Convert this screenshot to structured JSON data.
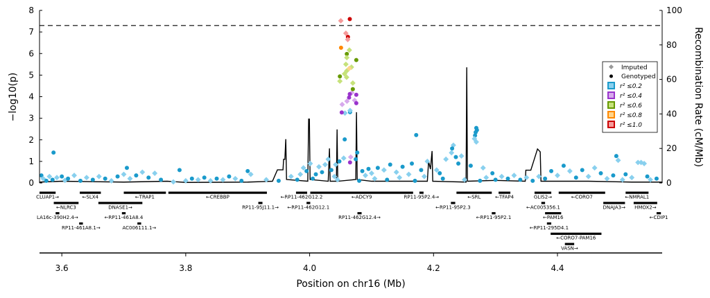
{
  "chart_data": {
    "type": "scatter",
    "title": "",
    "xlabel": "Position on chr16 (Mb)",
    "ylabel": "−log10(p)",
    "ylabel_right": "Recombination Rate (cM/Mb)",
    "xlim": [
      3.564,
      4.569
    ],
    "ylim": [
      0,
      8
    ],
    "ylim_right": [
      0,
      100
    ],
    "xticks": [
      3.6,
      3.8,
      4.0,
      4.2,
      4.4
    ],
    "xtick_labels": [
      "3.6",
      "3.8",
      "4.0",
      "4.2",
      "4.4"
    ],
    "yticks": [
      0,
      1,
      2,
      3,
      4,
      5,
      6,
      7,
      8
    ],
    "yticks_right": [
      0,
      20,
      40,
      60,
      80,
      100
    ],
    "significance_line": 7.3,
    "legend": {
      "placement": "right",
      "imputed_label": "Imputed",
      "genotyped_label": "Genotyped",
      "bins": [
        {
          "label": "r² ≤0.2",
          "dark": "#1a9acb",
          "light": "#89d0ee"
        },
        {
          "label": "r² ≤0.4",
          "dark": "#9933cc",
          "light": "#d7a9ec"
        },
        {
          "label": "r² ≤0.6",
          "dark": "#669900",
          "light": "#c6e27a"
        },
        {
          "label": "r² ≤0.8",
          "dark": "#ff8800",
          "light": "#ffd48c"
        },
        {
          "label": "r² ≤1.0",
          "dark": "#cc0000",
          "light": "#f59b9b"
        }
      ]
    },
    "points_format": "[position_Mb, -log10p, r2_bin_index, genotyped(1)/imputed(0)]",
    "points": [
      [
        4.0503,
        7.52,
        4,
        0
      ],
      [
        4.0648,
        7.6,
        4,
        1
      ],
      [
        4.0585,
        6.94,
        4,
        0
      ],
      [
        4.0618,
        6.77,
        4,
        1
      ],
      [
        4.0615,
        6.65,
        4,
        0
      ],
      [
        4.0507,
        6.27,
        3,
        1
      ],
      [
        4.0641,
        6.16,
        2,
        0
      ],
      [
        4.06,
        5.98,
        2,
        1
      ],
      [
        4.06,
        5.81,
        2,
        0
      ],
      [
        4.0753,
        5.7,
        2,
        1
      ],
      [
        4.0585,
        5.5,
        2,
        0
      ],
      [
        4.0675,
        5.37,
        2,
        0
      ],
      [
        4.064,
        5.31,
        3,
        0
      ],
      [
        4.06,
        5.2,
        2,
        0
      ],
      [
        4.0563,
        5.06,
        2,
        0
      ],
      [
        4.0488,
        4.94,
        2,
        1
      ],
      [
        4.0597,
        4.9,
        2,
        0
      ],
      [
        4.0488,
        4.72,
        2,
        0
      ],
      [
        4.0697,
        4.63,
        2,
        0
      ],
      [
        4.0697,
        4.35,
        2,
        1
      ],
      [
        4.068,
        4.18,
        1,
        0
      ],
      [
        4.0648,
        4.12,
        1,
        1
      ],
      [
        4.0753,
        4.09,
        1,
        1
      ],
      [
        4.0637,
        3.96,
        1,
        1
      ],
      [
        4.0603,
        3.79,
        1,
        0
      ],
      [
        4.0726,
        3.83,
        1,
        0
      ],
      [
        4.0753,
        3.7,
        1,
        1
      ],
      [
        4.0525,
        3.64,
        1,
        0
      ],
      [
        4.0518,
        3.27,
        1,
        1
      ],
      [
        4.057,
        3.24,
        0,
        0
      ],
      [
        4.0652,
        3.28,
        0,
        1
      ],
      [
        4.0652,
        3.36,
        0,
        0
      ],
      [
        4.0566,
        2.02,
        0,
        1
      ],
      [
        4.0652,
        0.95,
        1,
        1
      ],
      [
        4.0663,
        1.2,
        1,
        0
      ],
      [
        4.0768,
        1.41,
        0,
        1
      ],
      [
        4.0745,
        1.1,
        0,
        1
      ],
      [
        4.055,
        1.15,
        0,
        0
      ],
      [
        4.048,
        1.0,
        0,
        1
      ],
      [
        4.042,
        0.85,
        0,
        0
      ],
      [
        3.5866,
        1.41,
        0,
        1
      ],
      [
        4.172,
        2.22,
        0,
        1
      ],
      [
        4.269,
        2.55,
        0,
        1
      ],
      [
        4.27,
        2.45,
        0,
        1
      ],
      [
        4.268,
        2.35,
        0,
        1
      ],
      [
        4.267,
        2.2,
        0,
        1
      ],
      [
        4.266,
        2.05,
        0,
        0
      ],
      [
        4.269,
        1.9,
        0,
        0
      ],
      [
        4.232,
        1.75,
        0,
        0
      ],
      [
        4.23,
        1.6,
        0,
        1
      ],
      [
        4.229,
        1.4,
        0,
        0
      ],
      [
        4.236,
        1.2,
        0,
        1
      ],
      [
        4.24,
        0.9,
        0,
        1
      ],
      [
        4.245,
        1.25,
        0,
        0
      ],
      [
        4.22,
        1.1,
        0,
        0
      ],
      [
        4.26,
        0.8,
        0,
        1
      ],
      [
        4.28,
        0.7,
        0,
        0
      ],
      [
        4.295,
        0.45,
        0,
        1
      ],
      [
        4.19,
        1.0,
        0,
        0
      ],
      [
        4.18,
        0.6,
        0,
        1
      ],
      [
        4.495,
        1.25,
        0,
        1
      ],
      [
        4.498,
        1.05,
        0,
        0
      ],
      [
        4.53,
        0.95,
        0,
        0
      ],
      [
        4.535,
        0.95,
        0,
        0
      ],
      [
        4.54,
        0.9,
        0,
        0
      ],
      [
        4.46,
        0.7,
        0,
        0
      ],
      [
        4.44,
        0.6,
        0,
        1
      ],
      [
        4.42,
        0.55,
        0,
        0
      ],
      [
        4.39,
        0.55,
        0,
        1
      ],
      [
        4.41,
        0.8,
        0,
        1
      ],
      [
        3.9,
        0.55,
        0,
        1
      ],
      [
        3.905,
        0.4,
        0,
        0
      ],
      [
        3.99,
        0.7,
        0,
        0
      ],
      [
        3.995,
        0.55,
        0,
        1
      ],
      [
        4.001,
        0.9,
        0,
        0
      ],
      [
        4.01,
        0.4,
        0,
        1
      ],
      [
        4.015,
        0.75,
        0,
        0
      ],
      [
        4.02,
        0.5,
        0,
        1
      ],
      [
        4.025,
        0.85,
        0,
        0
      ],
      [
        4.03,
        1.1,
        0,
        0
      ],
      [
        4.035,
        0.6,
        0,
        1
      ],
      [
        4.04,
        0.3,
        0,
        0
      ],
      [
        4.085,
        0.55,
        0,
        1
      ],
      [
        4.09,
        0.35,
        0,
        0
      ],
      [
        4.095,
        0.65,
        0,
        1
      ],
      [
        4.1,
        0.45,
        0,
        0
      ],
      [
        4.11,
        0.7,
        0,
        1
      ],
      [
        4.12,
        0.6,
        0,
        0
      ],
      [
        4.13,
        0.85,
        0,
        1
      ],
      [
        4.14,
        0.5,
        0,
        0
      ],
      [
        4.15,
        0.75,
        0,
        1
      ],
      [
        4.16,
        0.4,
        0,
        0
      ],
      [
        4.165,
        0.9,
        0,
        1
      ],
      [
        4.205,
        0.6,
        0,
        0
      ],
      [
        4.21,
        0.45,
        0,
        1
      ],
      [
        3.567,
        0.35,
        0,
        1
      ],
      [
        3.57,
        0.2,
        0,
        0
      ],
      [
        3.575,
        0.1,
        0,
        1
      ],
      [
        3.58,
        0.3,
        0,
        0
      ],
      [
        3.585,
        0.15,
        0,
        1
      ],
      [
        3.592,
        0.25,
        0,
        0
      ],
      [
        3.6,
        0.3,
        0,
        1
      ],
      [
        3.605,
        0.12,
        0,
        0
      ],
      [
        3.61,
        0.2,
        0,
        1
      ],
      [
        3.62,
        0.35,
        0,
        0
      ],
      [
        3.63,
        0.1,
        0,
        1
      ],
      [
        3.64,
        0.25,
        0,
        0
      ],
      [
        3.65,
        0.15,
        0,
        1
      ],
      [
        3.66,
        0.3,
        0,
        0
      ],
      [
        3.67,
        0.2,
        0,
        1
      ],
      [
        3.68,
        0.1,
        0,
        0
      ],
      [
        3.69,
        0.3,
        0,
        1
      ],
      [
        3.7,
        0.4,
        0,
        0
      ],
      [
        3.705,
        0.7,
        0,
        1
      ],
      [
        3.71,
        0.2,
        0,
        0
      ],
      [
        3.72,
        0.35,
        0,
        1
      ],
      [
        3.73,
        0.5,
        0,
        0
      ],
      [
        3.74,
        0.25,
        0,
        1
      ],
      [
        3.75,
        0.45,
        0,
        0
      ],
      [
        3.76,
        0.15,
        0,
        1
      ],
      [
        3.78,
        0.05,
        0,
        0
      ],
      [
        3.79,
        0.6,
        0,
        1
      ],
      [
        3.8,
        0.1,
        0,
        0
      ],
      [
        3.81,
        0.2,
        0,
        1
      ],
      [
        3.82,
        0.15,
        0,
        0
      ],
      [
        3.83,
        0.25,
        0,
        1
      ],
      [
        3.84,
        0.1,
        0,
        0
      ],
      [
        3.85,
        0.2,
        0,
        1
      ],
      [
        3.86,
        0.15,
        0,
        0
      ],
      [
        3.87,
        0.3,
        0,
        1
      ],
      [
        3.88,
        0.2,
        0,
        0
      ],
      [
        3.89,
        0.1,
        0,
        1
      ],
      [
        3.93,
        0.15,
        0,
        0
      ],
      [
        3.95,
        0.1,
        0,
        1
      ],
      [
        3.97,
        0.3,
        0,
        0
      ],
      [
        3.98,
        0.15,
        0,
        1
      ],
      [
        3.985,
        0.4,
        0,
        0
      ],
      [
        4.005,
        0.2,
        0,
        1
      ],
      [
        4.045,
        0.15,
        0,
        0
      ],
      [
        4.08,
        0.1,
        0,
        1
      ],
      [
        4.105,
        0.2,
        0,
        0
      ],
      [
        4.125,
        0.15,
        0,
        1
      ],
      [
        4.145,
        0.25,
        0,
        0
      ],
      [
        4.17,
        0.1,
        0,
        1
      ],
      [
        4.185,
        0.3,
        0,
        0
      ],
      [
        4.215,
        0.2,
        0,
        1
      ],
      [
        4.25,
        0.15,
        0,
        0
      ],
      [
        4.275,
        0.1,
        0,
        1
      ],
      [
        4.285,
        0.25,
        0,
        0
      ],
      [
        4.3,
        0.15,
        0,
        1
      ],
      [
        4.31,
        0.3,
        0,
        0
      ],
      [
        4.32,
        0.2,
        0,
        1
      ],
      [
        4.33,
        0.35,
        0,
        0
      ],
      [
        4.34,
        0.15,
        0,
        1
      ],
      [
        4.35,
        0.25,
        0,
        0
      ],
      [
        4.36,
        0.1,
        0,
        1
      ],
      [
        4.37,
        0.3,
        0,
        0
      ],
      [
        4.38,
        0.2,
        0,
        1
      ],
      [
        4.4,
        0.35,
        0,
        0
      ],
      [
        4.43,
        0.25,
        0,
        1
      ],
      [
        4.45,
        0.3,
        0,
        0
      ],
      [
        4.47,
        0.45,
        0,
        1
      ],
      [
        4.48,
        0.2,
        0,
        0
      ],
      [
        4.49,
        0.35,
        0,
        1
      ],
      [
        4.505,
        0.15,
        0,
        0
      ],
      [
        4.51,
        0.4,
        0,
        1
      ],
      [
        4.52,
        0.25,
        0,
        0
      ],
      [
        4.545,
        0.3,
        0,
        1
      ],
      [
        4.55,
        0.15,
        0,
        0
      ],
      [
        4.56,
        0.2,
        0,
        1
      ]
    ],
    "recombination_format": "[position_Mb, cM_per_Mb]",
    "recombination": [
      [
        3.564,
        0.5
      ],
      [
        3.6,
        1
      ],
      [
        3.7,
        0.5
      ],
      [
        3.77,
        1
      ],
      [
        3.8,
        0.3
      ],
      [
        3.9,
        0.5
      ],
      [
        3.94,
        1
      ],
      [
        3.948,
        7.6
      ],
      [
        3.957,
        7.6
      ],
      [
        3.958,
        13.7
      ],
      [
        3.96,
        13.7
      ],
      [
        3.9615,
        25.4
      ],
      [
        3.9627,
        2
      ],
      [
        3.997,
        1
      ],
      [
        3.9984,
        37
      ],
      [
        3.9996,
        37
      ],
      [
        4.0007,
        2
      ],
      [
        4.03,
        1
      ],
      [
        4.032,
        20
      ],
      [
        4.0331,
        1
      ],
      [
        4.0432,
        1
      ],
      [
        4.0443,
        31
      ],
      [
        4.0454,
        1
      ],
      [
        4.0745,
        2
      ],
      [
        4.0756,
        41
      ],
      [
        4.0768,
        2
      ],
      [
        4.1,
        1
      ],
      [
        4.19,
        1
      ],
      [
        4.192,
        12.5
      ],
      [
        4.195,
        8
      ],
      [
        4.1976,
        18.5
      ],
      [
        4.1987,
        1
      ],
      [
        4.2525,
        0.5
      ],
      [
        4.2536,
        67
      ],
      [
        4.2547,
        1
      ],
      [
        4.3,
        1.5
      ],
      [
        4.348,
        1
      ],
      [
        4.349,
        7.4
      ],
      [
        4.357,
        7.4
      ],
      [
        4.3678,
        19.7
      ],
      [
        4.3722,
        18
      ],
      [
        4.3734,
        1
      ],
      [
        4.45,
        1
      ],
      [
        4.52,
        0.5
      ],
      [
        4.569,
        0.5
      ]
    ],
    "genes_format": "[label, start_Mb, end_Mb, row]",
    "genes": [
      [
        "CLUAP1→",
        3.564,
        3.59,
        0
      ],
      [
        "←SLX4",
        3.629,
        3.663,
        0
      ],
      [
        "←TRAP1",
        3.7,
        3.768,
        0
      ],
      [
        "←CREBBP",
        3.772,
        3.931,
        0
      ],
      [
        "←RP11-462G12.2",
        3.978,
        3.996,
        0
      ],
      [
        "←ADCY9",
        4.001,
        4.167,
        0
      ],
      [
        "RP11-95P2.4→",
        4.179,
        4.182,
        0
      ],
      [
        "←SRL",
        4.237,
        4.294,
        0
      ],
      [
        "←TFAP4",
        4.305,
        4.324,
        0
      ],
      [
        "GLIS2→",
        4.363,
        4.39,
        0
      ],
      [
        "←CORO7",
        4.402,
        4.477,
        0
      ],
      [
        "←NMRAL1",
        4.51,
        4.547,
        0
      ],
      [
        "←NLRC3",
        3.587,
        3.627,
        1
      ],
      [
        "DNASE1→",
        3.659,
        3.73,
        1
      ],
      [
        "RP11-95J11.1→",
        3.918,
        3.923,
        1
      ],
      [
        "←RP11-462G12.1",
        3.995,
        4.001,
        1
      ],
      [
        "←RP11-95P2.3",
        4.228,
        4.235,
        1
      ],
      [
        "←AC005356.1",
        4.374,
        4.38,
        1
      ],
      [
        "DNAJA3→",
        4.474,
        4.509,
        1
      ],
      [
        "HMOX2→",
        4.523,
        4.561,
        1
      ],
      [
        "LA16c-390H2.4→",
        3.59,
        3.596,
        2
      ],
      [
        "←RP11-461A8.4",
        3.697,
        3.703,
        2
      ],
      [
        "RP11-462G12.4→",
        4.078,
        4.083,
        2
      ],
      [
        "←RP11-95P2.1",
        4.294,
        4.3,
        2
      ],
      [
        "←PAM16",
        4.38,
        4.406,
        2
      ],
      [
        "←CDIP1",
        4.56,
        4.567,
        2
      ],
      [
        "RP11-461A8.1→",
        3.628,
        3.634,
        3
      ],
      [
        "AC006111.1→",
        3.722,
        3.728,
        3
      ],
      [
        "←RP11-295D4.1",
        4.383,
        4.39,
        3
      ],
      [
        "←CORO7-PAM16",
        4.389,
        4.471,
        4
      ],
      [
        "VASN→",
        4.412,
        4.427,
        5
      ]
    ]
  }
}
